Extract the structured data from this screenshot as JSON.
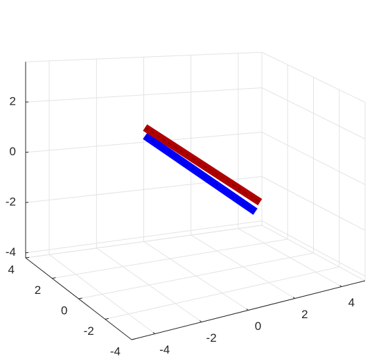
{
  "chart_data": {
    "type": "line3d",
    "xlim": [
      -5,
      5
    ],
    "ylim": [
      -4,
      4
    ],
    "zlim": [
      -4.2,
      3.6
    ],
    "xticks": [
      -4,
      -2,
      0,
      2,
      4
    ],
    "yticks": [
      -4,
      -2,
      0,
      2,
      4
    ],
    "zticks": [
      -4,
      -2,
      0,
      2
    ],
    "grid": true,
    "series": [
      {
        "color": "#0000ff",
        "x": [
          -0.5,
          0.3
        ],
        "y": [
          3,
          -4
        ],
        "z": [
          0.65,
          -0.25
        ]
      },
      {
        "color": "#b00000",
        "x": [
          -0.5,
          0.5
        ],
        "y": [
          3,
          -4
        ],
        "z": [
          1,
          0.1
        ]
      }
    ]
  }
}
